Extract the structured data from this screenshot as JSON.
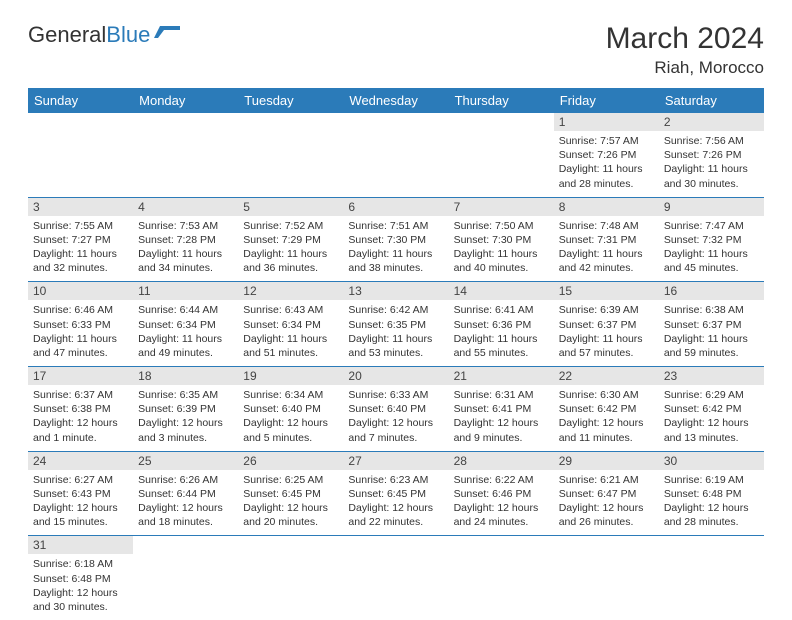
{
  "brand": {
    "part1": "General",
    "part2": "Blue"
  },
  "title": "March 2024",
  "location": "Riah, Morocco",
  "colors": {
    "header_bg": "#2b7bb9",
    "header_text": "#ffffff",
    "daynum_bg": "#e6e6e6",
    "border": "#2b7bb9",
    "text": "#333333",
    "page_bg": "#ffffff"
  },
  "fonts": {
    "title_size": 30,
    "location_size": 17,
    "head_size": 13,
    "cell_size": 10.5
  },
  "weekdays": [
    "Sunday",
    "Monday",
    "Tuesday",
    "Wednesday",
    "Thursday",
    "Friday",
    "Saturday"
  ],
  "weeks": [
    [
      {
        "empty": true
      },
      {
        "empty": true
      },
      {
        "empty": true
      },
      {
        "empty": true
      },
      {
        "empty": true
      },
      {
        "num": "1",
        "sunrise": "Sunrise: 7:57 AM",
        "sunset": "Sunset: 7:26 PM",
        "daylight": "Daylight: 11 hours and 28 minutes."
      },
      {
        "num": "2",
        "sunrise": "Sunrise: 7:56 AM",
        "sunset": "Sunset: 7:26 PM",
        "daylight": "Daylight: 11 hours and 30 minutes."
      }
    ],
    [
      {
        "num": "3",
        "sunrise": "Sunrise: 7:55 AM",
        "sunset": "Sunset: 7:27 PM",
        "daylight": "Daylight: 11 hours and 32 minutes."
      },
      {
        "num": "4",
        "sunrise": "Sunrise: 7:53 AM",
        "sunset": "Sunset: 7:28 PM",
        "daylight": "Daylight: 11 hours and 34 minutes."
      },
      {
        "num": "5",
        "sunrise": "Sunrise: 7:52 AM",
        "sunset": "Sunset: 7:29 PM",
        "daylight": "Daylight: 11 hours and 36 minutes."
      },
      {
        "num": "6",
        "sunrise": "Sunrise: 7:51 AM",
        "sunset": "Sunset: 7:30 PM",
        "daylight": "Daylight: 11 hours and 38 minutes."
      },
      {
        "num": "7",
        "sunrise": "Sunrise: 7:50 AM",
        "sunset": "Sunset: 7:30 PM",
        "daylight": "Daylight: 11 hours and 40 minutes."
      },
      {
        "num": "8",
        "sunrise": "Sunrise: 7:48 AM",
        "sunset": "Sunset: 7:31 PM",
        "daylight": "Daylight: 11 hours and 42 minutes."
      },
      {
        "num": "9",
        "sunrise": "Sunrise: 7:47 AM",
        "sunset": "Sunset: 7:32 PM",
        "daylight": "Daylight: 11 hours and 45 minutes."
      }
    ],
    [
      {
        "num": "10",
        "sunrise": "Sunrise: 6:46 AM",
        "sunset": "Sunset: 6:33 PM",
        "daylight": "Daylight: 11 hours and 47 minutes."
      },
      {
        "num": "11",
        "sunrise": "Sunrise: 6:44 AM",
        "sunset": "Sunset: 6:34 PM",
        "daylight": "Daylight: 11 hours and 49 minutes."
      },
      {
        "num": "12",
        "sunrise": "Sunrise: 6:43 AM",
        "sunset": "Sunset: 6:34 PM",
        "daylight": "Daylight: 11 hours and 51 minutes."
      },
      {
        "num": "13",
        "sunrise": "Sunrise: 6:42 AM",
        "sunset": "Sunset: 6:35 PM",
        "daylight": "Daylight: 11 hours and 53 minutes."
      },
      {
        "num": "14",
        "sunrise": "Sunrise: 6:41 AM",
        "sunset": "Sunset: 6:36 PM",
        "daylight": "Daylight: 11 hours and 55 minutes."
      },
      {
        "num": "15",
        "sunrise": "Sunrise: 6:39 AM",
        "sunset": "Sunset: 6:37 PM",
        "daylight": "Daylight: 11 hours and 57 minutes."
      },
      {
        "num": "16",
        "sunrise": "Sunrise: 6:38 AM",
        "sunset": "Sunset: 6:37 PM",
        "daylight": "Daylight: 11 hours and 59 minutes."
      }
    ],
    [
      {
        "num": "17",
        "sunrise": "Sunrise: 6:37 AM",
        "sunset": "Sunset: 6:38 PM",
        "daylight": "Daylight: 12 hours and 1 minute."
      },
      {
        "num": "18",
        "sunrise": "Sunrise: 6:35 AM",
        "sunset": "Sunset: 6:39 PM",
        "daylight": "Daylight: 12 hours and 3 minutes."
      },
      {
        "num": "19",
        "sunrise": "Sunrise: 6:34 AM",
        "sunset": "Sunset: 6:40 PM",
        "daylight": "Daylight: 12 hours and 5 minutes."
      },
      {
        "num": "20",
        "sunrise": "Sunrise: 6:33 AM",
        "sunset": "Sunset: 6:40 PM",
        "daylight": "Daylight: 12 hours and 7 minutes."
      },
      {
        "num": "21",
        "sunrise": "Sunrise: 6:31 AM",
        "sunset": "Sunset: 6:41 PM",
        "daylight": "Daylight: 12 hours and 9 minutes."
      },
      {
        "num": "22",
        "sunrise": "Sunrise: 6:30 AM",
        "sunset": "Sunset: 6:42 PM",
        "daylight": "Daylight: 12 hours and 11 minutes."
      },
      {
        "num": "23",
        "sunrise": "Sunrise: 6:29 AM",
        "sunset": "Sunset: 6:42 PM",
        "daylight": "Daylight: 12 hours and 13 minutes."
      }
    ],
    [
      {
        "num": "24",
        "sunrise": "Sunrise: 6:27 AM",
        "sunset": "Sunset: 6:43 PM",
        "daylight": "Daylight: 12 hours and 15 minutes."
      },
      {
        "num": "25",
        "sunrise": "Sunrise: 6:26 AM",
        "sunset": "Sunset: 6:44 PM",
        "daylight": "Daylight: 12 hours and 18 minutes."
      },
      {
        "num": "26",
        "sunrise": "Sunrise: 6:25 AM",
        "sunset": "Sunset: 6:45 PM",
        "daylight": "Daylight: 12 hours and 20 minutes."
      },
      {
        "num": "27",
        "sunrise": "Sunrise: 6:23 AM",
        "sunset": "Sunset: 6:45 PM",
        "daylight": "Daylight: 12 hours and 22 minutes."
      },
      {
        "num": "28",
        "sunrise": "Sunrise: 6:22 AM",
        "sunset": "Sunset: 6:46 PM",
        "daylight": "Daylight: 12 hours and 24 minutes."
      },
      {
        "num": "29",
        "sunrise": "Sunrise: 6:21 AM",
        "sunset": "Sunset: 6:47 PM",
        "daylight": "Daylight: 12 hours and 26 minutes."
      },
      {
        "num": "30",
        "sunrise": "Sunrise: 6:19 AM",
        "sunset": "Sunset: 6:48 PM",
        "daylight": "Daylight: 12 hours and 28 minutes."
      }
    ],
    [
      {
        "num": "31",
        "sunrise": "Sunrise: 6:18 AM",
        "sunset": "Sunset: 6:48 PM",
        "daylight": "Daylight: 12 hours and 30 minutes."
      },
      {
        "empty": true
      },
      {
        "empty": true
      },
      {
        "empty": true
      },
      {
        "empty": true
      },
      {
        "empty": true
      },
      {
        "empty": true
      }
    ]
  ]
}
